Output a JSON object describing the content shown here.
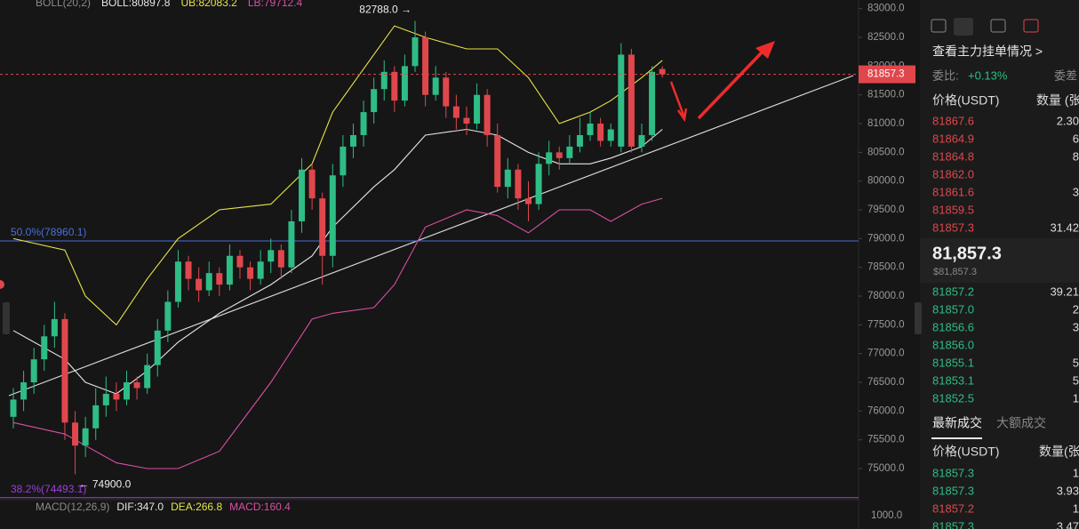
{
  "chart_data": {
    "type": "candlestick",
    "indicator_labels": [
      "BOLL(20,2)",
      "BOLL:80897.8",
      "UB:82083.2",
      "LB:79712.4"
    ],
    "indicator_colors": [
      "#8a8a8a",
      "#e6e6e6",
      "#e8e34a",
      "#d94fa6"
    ],
    "candles": [
      {
        "o": 75900,
        "h": 76400,
        "l": 75700,
        "c": 76200
      },
      {
        "o": 76200,
        "h": 76700,
        "l": 76000,
        "c": 76500
      },
      {
        "o": 76500,
        "h": 77100,
        "l": 76300,
        "c": 76900
      },
      {
        "o": 76900,
        "h": 77500,
        "l": 76700,
        "c": 77300
      },
      {
        "o": 77300,
        "h": 77900,
        "l": 77100,
        "c": 77600
      },
      {
        "o": 77600,
        "h": 77700,
        "l": 75500,
        "c": 75800
      },
      {
        "o": 75800,
        "h": 76000,
        "l": 74900,
        "c": 75400
      },
      {
        "o": 75400,
        "h": 75900,
        "l": 75200,
        "c": 75700
      },
      {
        "o": 75700,
        "h": 76400,
        "l": 75500,
        "c": 76100
      },
      {
        "o": 76100,
        "h": 76600,
        "l": 75900,
        "c": 76300
      },
      {
        "o": 76300,
        "h": 76500,
        "l": 76000,
        "c": 76200
      },
      {
        "o": 76200,
        "h": 76700,
        "l": 76100,
        "c": 76500
      },
      {
        "o": 76500,
        "h": 76600,
        "l": 76200,
        "c": 76400
      },
      {
        "o": 76400,
        "h": 77000,
        "l": 76300,
        "c": 76800
      },
      {
        "o": 76800,
        "h": 77600,
        "l": 76600,
        "c": 77400
      },
      {
        "o": 77400,
        "h": 78100,
        "l": 77200,
        "c": 77900
      },
      {
        "o": 77900,
        "h": 78800,
        "l": 77800,
        "c": 78600
      },
      {
        "o": 78600,
        "h": 78700,
        "l": 78100,
        "c": 78300
      },
      {
        "o": 78300,
        "h": 78500,
        "l": 77900,
        "c": 78100
      },
      {
        "o": 78100,
        "h": 78600,
        "l": 78000,
        "c": 78400
      },
      {
        "o": 78400,
        "h": 78500,
        "l": 78000,
        "c": 78200
      },
      {
        "o": 78200,
        "h": 78900,
        "l": 78100,
        "c": 78700
      },
      {
        "o": 78700,
        "h": 78800,
        "l": 78300,
        "c": 78500
      },
      {
        "o": 78500,
        "h": 78600,
        "l": 78100,
        "c": 78300
      },
      {
        "o": 78300,
        "h": 78800,
        "l": 78200,
        "c": 78600
      },
      {
        "o": 78600,
        "h": 79000,
        "l": 78400,
        "c": 78800
      },
      {
        "o": 78800,
        "h": 78900,
        "l": 78300,
        "c": 78500
      },
      {
        "o": 78500,
        "h": 79500,
        "l": 78400,
        "c": 79300
      },
      {
        "o": 79300,
        "h": 80400,
        "l": 79100,
        "c": 80200
      },
      {
        "o": 80200,
        "h": 80300,
        "l": 79500,
        "c": 79700
      },
      {
        "o": 79700,
        "h": 79800,
        "l": 78200,
        "c": 78700
      },
      {
        "o": 78700,
        "h": 80300,
        "l": 78500,
        "c": 80100
      },
      {
        "o": 80100,
        "h": 80800,
        "l": 79900,
        "c": 80600
      },
      {
        "o": 80600,
        "h": 81000,
        "l": 80400,
        "c": 80800
      },
      {
        "o": 80800,
        "h": 81400,
        "l": 80600,
        "c": 81200
      },
      {
        "o": 81200,
        "h": 81800,
        "l": 81000,
        "c": 81600
      },
      {
        "o": 81600,
        "h": 82100,
        "l": 81400,
        "c": 81900
      },
      {
        "o": 81900,
        "h": 82000,
        "l": 81200,
        "c": 81400
      },
      {
        "o": 81400,
        "h": 82200,
        "l": 81300,
        "c": 82000
      },
      {
        "o": 82000,
        "h": 82788,
        "l": 81900,
        "c": 82500
      },
      {
        "o": 82500,
        "h": 82600,
        "l": 81300,
        "c": 81500
      },
      {
        "o": 81500,
        "h": 82000,
        "l": 81400,
        "c": 81800
      },
      {
        "o": 81800,
        "h": 81900,
        "l": 81100,
        "c": 81300
      },
      {
        "o": 81300,
        "h": 81500,
        "l": 80900,
        "c": 81100
      },
      {
        "o": 81100,
        "h": 81300,
        "l": 80800,
        "c": 81000
      },
      {
        "o": 81000,
        "h": 81700,
        "l": 80900,
        "c": 81500
      },
      {
        "o": 81500,
        "h": 81600,
        "l": 80600,
        "c": 80800
      },
      {
        "o": 80800,
        "h": 81000,
        "l": 79800,
        "c": 79900
      },
      {
        "o": 79900,
        "h": 80400,
        "l": 79700,
        "c": 80200
      },
      {
        "o": 80200,
        "h": 80300,
        "l": 79500,
        "c": 79700
      },
      {
        "o": 79700,
        "h": 80000,
        "l": 79300,
        "c": 79600
      },
      {
        "o": 79600,
        "h": 80500,
        "l": 79500,
        "c": 80300
      },
      {
        "o": 80300,
        "h": 80700,
        "l": 80100,
        "c": 80500
      },
      {
        "o": 80500,
        "h": 80600,
        "l": 80200,
        "c": 80400
      },
      {
        "o": 80400,
        "h": 80800,
        "l": 80300,
        "c": 80600
      },
      {
        "o": 80600,
        "h": 81100,
        "l": 80500,
        "c": 80800
      },
      {
        "o": 80800,
        "h": 81200,
        "l": 80700,
        "c": 81000
      },
      {
        "o": 81000,
        "h": 81100,
        "l": 80600,
        "c": 80700
      },
      {
        "o": 80700,
        "h": 81000,
        "l": 80600,
        "c": 80900
      },
      {
        "o": 80600,
        "h": 82400,
        "l": 80500,
        "c": 82200
      },
      {
        "o": 82200,
        "h": 82300,
        "l": 80500,
        "c": 80600
      },
      {
        "o": 80600,
        "h": 81000,
        "l": 80500,
        "c": 80800
      },
      {
        "o": 80800,
        "h": 82000,
        "l": 80700,
        "c": 81900
      },
      {
        "o": 81950,
        "h": 82000,
        "l": 81800,
        "c": 81857.3
      }
    ],
    "up_color": "#2ebd85",
    "down_color": "#e0474c",
    "bands": [
      {
        "color": "#e8e34a",
        "x": [
          0,
          5,
          7,
          10,
          13,
          16,
          20,
          25,
          29,
          31,
          35,
          37,
          40,
          44,
          47,
          50,
          53,
          56,
          58,
          61,
          63
        ],
        "values": [
          79000,
          78800,
          78000,
          77500,
          78300,
          79000,
          79500,
          79600,
          80300,
          81200,
          82200,
          82700,
          82500,
          82300,
          82300,
          81800,
          81000,
          81200,
          81400,
          81800,
          82100
        ]
      },
      {
        "color": "#e6e6e6",
        "x": [
          0,
          5,
          7,
          10,
          13,
          16,
          20,
          25,
          29,
          31,
          35,
          37,
          40,
          44,
          47,
          50,
          53,
          56,
          58,
          61,
          63
        ],
        "values": [
          77400,
          76900,
          76500,
          76300,
          76700,
          77200,
          77700,
          78200,
          78700,
          79200,
          79900,
          80200,
          80800,
          80900,
          80800,
          80500,
          80300,
          80300,
          80400,
          80600,
          80900
        ]
      },
      {
        "color": "#d94fa6",
        "x": [
          0,
          5,
          7,
          10,
          13,
          16,
          20,
          25,
          29,
          31,
          35,
          37,
          40,
          44,
          47,
          50,
          53,
          56,
          58,
          61,
          63
        ],
        "values": [
          75800,
          75600,
          75400,
          75100,
          75000,
          75000,
          75300,
          76500,
          77600,
          77700,
          77800,
          78200,
          79200,
          79500,
          79400,
          79100,
          79500,
          79500,
          79300,
          79600,
          79700
        ]
      }
    ],
    "ylim": [
      74490,
      83150
    ],
    "yticks": [
      {
        "value": 83000,
        "label": "83000.0"
      },
      {
        "value": 82500,
        "label": "82500.0"
      },
      {
        "value": 82000,
        "label": "82000.0"
      },
      {
        "value": 81500,
        "label": "81500.0"
      },
      {
        "value": 81000,
        "label": "81000.0"
      },
      {
        "value": 80500,
        "label": "80500.0"
      },
      {
        "value": 80000,
        "label": "80000.0"
      },
      {
        "value": 79500,
        "label": "79500.0"
      },
      {
        "value": 79000,
        "label": "79000.0"
      },
      {
        "value": 78500,
        "label": "78500.0"
      },
      {
        "value": 78000,
        "label": "78000.0"
      },
      {
        "value": 77500,
        "label": "77500.0"
      },
      {
        "value": 77000,
        "label": "77000.0"
      },
      {
        "value": 76500,
        "label": "76500.0"
      },
      {
        "value": 76000,
        "label": "76000.0"
      },
      {
        "value": 75500,
        "label": "75500.0"
      },
      {
        "value": 75000,
        "label": "75000.0"
      }
    ],
    "levels": [
      {
        "value": 78960.1,
        "label": "50.0%(78960.1)",
        "color": "#4a6fd8"
      },
      {
        "value": 74493.1,
        "label": "38.2%(74493.1)",
        "color": "#9b3fd8"
      }
    ],
    "current_price": {
      "value": 81857.3,
      "label": "81857.3"
    },
    "annotations": [
      {
        "value": 82788.0,
        "label": "82788.0 →",
        "index": 39
      },
      {
        "value": 74900.0,
        "label": "← 74900.0",
        "index": 6
      }
    ],
    "macd": {
      "labels": [
        "MACD(12,26,9)",
        "DIF:347.0",
        "DEA:266.8",
        "MACD:160.4"
      ],
      "colors": [
        "#8a8a8a",
        "#e6e6e6",
        "#e8e34a",
        "#d94fa6"
      ],
      "yticks": [
        {
          "value": 1000,
          "label": "1000.0"
        }
      ]
    }
  },
  "order_book": {
    "link": "查看主力挂单情况 >",
    "ratio_label": "委比:",
    "ratio": "+0.13%",
    "diff_label": "委差",
    "headers": [
      "价格(USDT)",
      "数量 (张"
    ],
    "asks": [
      [
        "81867.6",
        "2.30"
      ],
      [
        "81864.9",
        "6"
      ],
      [
        "81864.8",
        "8"
      ],
      [
        "81862.0"
      ],
      [
        "81861.6",
        "3"
      ],
      [
        "81859.5"
      ],
      [
        "81857.3",
        "31.42"
      ]
    ],
    "last_price": "81,857.3",
    "last_price_usd": "$81,857.3",
    "bids": [
      [
        "81857.2",
        "39.21"
      ],
      [
        "81857.0",
        "2"
      ],
      [
        "81856.6",
        "3"
      ],
      [
        "81856.0"
      ],
      [
        "81855.1",
        "5"
      ],
      [
        "81853.1",
        "5"
      ],
      [
        "81852.5",
        "1"
      ]
    ],
    "tabs": [
      "最新成交",
      "大额成交"
    ],
    "trade_headers": [
      "价格(USDT)",
      "数量(张"
    ],
    "trades": [
      [
        "81857.3",
        "1"
      ],
      [
        "81857.3",
        "3.93"
      ],
      [
        "81857.2",
        "1"
      ],
      [
        "81857.3",
        "3.47"
      ]
    ]
  }
}
